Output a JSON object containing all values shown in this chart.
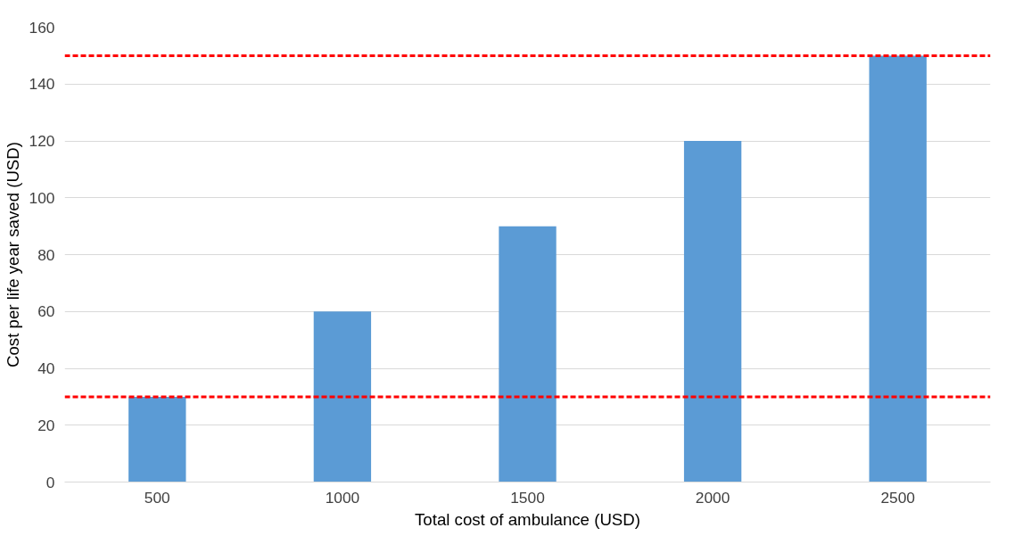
{
  "chart_data": {
    "type": "bar",
    "xlabel": "Total cost of ambulance (USD)",
    "ylabel": "Cost per life year saved (USD)",
    "categories": [
      "500",
      "1000",
      "1500",
      "2000",
      "2500"
    ],
    "values": [
      30,
      60,
      90,
      120,
      150
    ],
    "color": "#5b9bd5",
    "ylim": [
      0,
      160
    ],
    "yticks": [
      0,
      20,
      40,
      60,
      80,
      100,
      120,
      140,
      160
    ],
    "grid": "y",
    "ref_lines": [
      {
        "axis": "y",
        "value": 30,
        "label": null,
        "color": "#ff0000",
        "line_style": "dashed"
      },
      {
        "axis": "y",
        "value": 150,
        "label": null,
        "color": "#ff0000",
        "line_style": "dashed"
      }
    ]
  }
}
